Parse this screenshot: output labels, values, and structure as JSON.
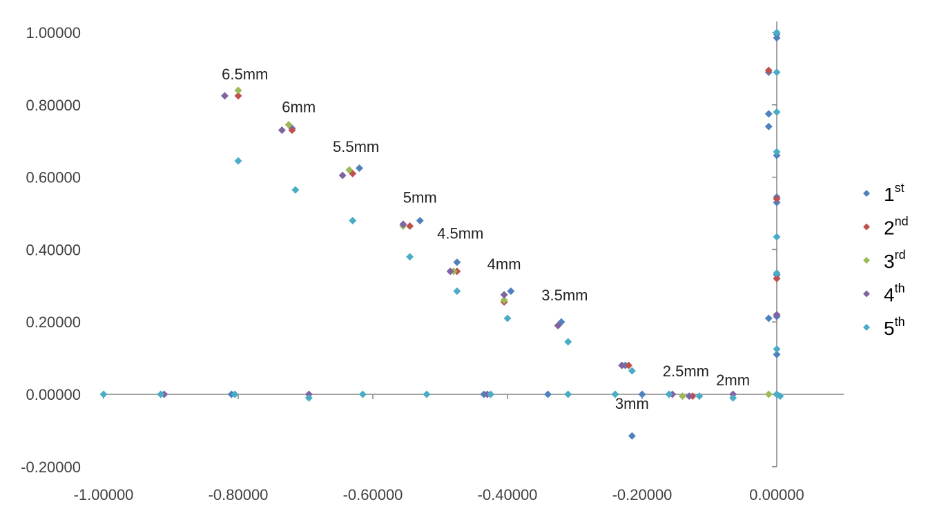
{
  "chart_data": {
    "type": "scatter",
    "title": "",
    "xlabel": "",
    "ylabel": "",
    "xlim": [
      -1.0,
      0.1
    ],
    "ylim": [
      -0.2,
      1.0
    ],
    "x_ticks": [
      "-1.00000",
      "-0.80000",
      "-0.60000",
      "-0.40000",
      "-0.20000",
      "0.00000"
    ],
    "y_ticks": [
      "1.00000",
      "0.80000",
      "0.60000",
      "0.40000",
      "0.20000",
      "0.00000",
      "-0.20000"
    ],
    "legend_position": "right",
    "annotations": [
      {
        "text": "6.5mm",
        "x": -0.79,
        "y": 0.87
      },
      {
        "text": "6mm",
        "x": -0.71,
        "y": 0.78
      },
      {
        "text": "5.5mm",
        "x": -0.625,
        "y": 0.67
      },
      {
        "text": "5mm",
        "x": -0.53,
        "y": 0.53
      },
      {
        "text": "4.5mm",
        "x": -0.47,
        "y": 0.43
      },
      {
        "text": "4mm",
        "x": -0.405,
        "y": 0.345
      },
      {
        "text": "3.5mm",
        "x": -0.315,
        "y": 0.26
      },
      {
        "text": "3mm",
        "x": -0.215,
        "y": -0.04
      },
      {
        "text": "2.5mm",
        "x": -0.135,
        "y": 0.05
      },
      {
        "text": "2mm",
        "x": -0.065,
        "y": 0.025
      }
    ],
    "series": [
      {
        "name": "1st",
        "label": "1",
        "sup": "st",
        "color": "#4f81bd",
        "points": [
          [
            -0.81,
            0.0
          ],
          [
            -0.72,
            0.735
          ],
          [
            -0.62,
            0.625
          ],
          [
            -0.53,
            0.48
          ],
          [
            -0.475,
            0.365
          ],
          [
            -0.395,
            0.285
          ],
          [
            -0.32,
            0.2
          ],
          [
            -0.34,
            0.0
          ],
          [
            -0.435,
            0.0
          ],
          [
            -0.225,
            0.08
          ],
          [
            -0.215,
            -0.115
          ],
          [
            -0.2,
            0.0
          ],
          [
            -0.012,
            0.21
          ],
          [
            -0.012,
            0.74
          ],
          [
            -0.012,
            0.775
          ],
          [
            -0.012,
            0.89
          ],
          [
            0.0,
            0.985
          ],
          [
            0.0,
            0.995
          ],
          [
            0.0,
            0.66
          ],
          [
            0.0,
            0.545
          ],
          [
            0.0,
            0.53
          ],
          [
            0.0,
            0.33
          ],
          [
            0.0,
            0.215
          ],
          [
            0.0,
            0.11
          ],
          [
            0.0,
            0.0
          ]
        ]
      },
      {
        "name": "2nd",
        "label": "2",
        "sup": "nd",
        "color": "#c0504d",
        "points": [
          [
            -0.8,
            0.825
          ],
          [
            -0.72,
            0.73
          ],
          [
            -0.63,
            0.61
          ],
          [
            -0.545,
            0.465
          ],
          [
            -0.475,
            0.34
          ],
          [
            -0.405,
            0.255
          ],
          [
            -0.325,
            0.19
          ],
          [
            -0.22,
            0.08
          ],
          [
            -0.125,
            -0.005
          ],
          [
            -0.012,
            0.895
          ],
          [
            0.0,
            0.54
          ],
          [
            0.0,
            0.32
          ],
          [
            0.0,
            0.0
          ]
        ]
      },
      {
        "name": "3rd",
        "label": "3",
        "sup": "rd",
        "color": "#9bbb59",
        "points": [
          [
            -0.8,
            0.84
          ],
          [
            -0.725,
            0.745
          ],
          [
            -0.635,
            0.62
          ],
          [
            -0.555,
            0.465
          ],
          [
            -0.48,
            0.34
          ],
          [
            -0.405,
            0.26
          ],
          [
            -0.325,
            0.19
          ],
          [
            -0.23,
            0.08
          ],
          [
            -0.14,
            -0.005
          ],
          [
            -0.012,
            0.0
          ],
          [
            0.0,
            0.0
          ]
        ]
      },
      {
        "name": "4th",
        "label": "4",
        "sup": "th",
        "color": "#8064a2",
        "points": [
          [
            -0.82,
            0.825
          ],
          [
            -0.735,
            0.73
          ],
          [
            -0.645,
            0.605
          ],
          [
            -0.555,
            0.47
          ],
          [
            -0.485,
            0.34
          ],
          [
            -0.405,
            0.275
          ],
          [
            -0.325,
            0.19
          ],
          [
            -0.23,
            0.08
          ],
          [
            -0.91,
            0.0
          ],
          [
            -0.695,
            0.0
          ],
          [
            -0.43,
            0.0
          ],
          [
            -0.155,
            0.0
          ],
          [
            -0.13,
            -0.005
          ],
          [
            -0.065,
            0.0
          ],
          [
            0.0,
            0.22
          ]
        ]
      },
      {
        "name": "5th",
        "label": "5",
        "sup": "th",
        "color": "#4bacc6",
        "points": [
          [
            -0.8,
            0.645
          ],
          [
            -0.715,
            0.565
          ],
          [
            -0.63,
            0.48
          ],
          [
            -0.545,
            0.38
          ],
          [
            -0.475,
            0.285
          ],
          [
            -0.4,
            0.21
          ],
          [
            -0.31,
            0.145
          ],
          [
            -0.215,
            0.065
          ],
          [
            -1.0,
            0.0
          ],
          [
            -0.915,
            0.0
          ],
          [
            -0.805,
            0.0
          ],
          [
            -0.695,
            -0.01
          ],
          [
            -0.615,
            0.0
          ],
          [
            -0.52,
            0.0
          ],
          [
            -0.425,
            0.0
          ],
          [
            -0.31,
            0.0
          ],
          [
            -0.24,
            0.0
          ],
          [
            -0.16,
            0.0
          ],
          [
            -0.115,
            -0.005
          ],
          [
            -0.065,
            -0.01
          ],
          [
            0.0,
            1.0
          ],
          [
            0.0,
            0.89
          ],
          [
            0.0,
            0.78
          ],
          [
            0.0,
            0.67
          ],
          [
            0.0,
            0.435
          ],
          [
            0.0,
            0.335
          ],
          [
            0.0,
            0.125
          ],
          [
            0.0,
            0.0
          ],
          [
            0.005,
            -0.005
          ]
        ]
      }
    ]
  }
}
